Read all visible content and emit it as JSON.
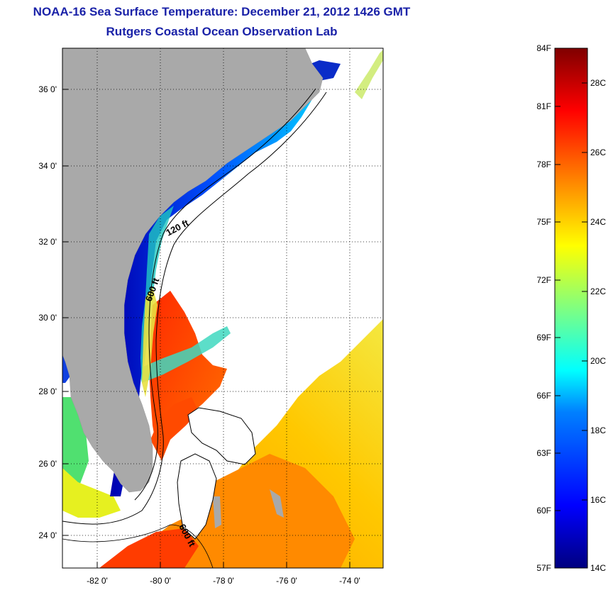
{
  "title": "NOAA-16 Sea Surface Temperature:  December 21, 2012 1426 GMT",
  "subtitle": "Rutgers Coastal Ocean Observation Lab",
  "map": {
    "x_ticks": [
      "-82 0'",
      "-80 0'",
      "-78 0'",
      "-76 0'",
      "-74 0'"
    ],
    "y_ticks": [
      "36 0'",
      "34 0'",
      "32 0'",
      "30 0'",
      "28 0'",
      "26 0'",
      "24 0'"
    ],
    "lon_range": [
      -83,
      -73
    ],
    "lat_range": [
      23,
      37
    ],
    "land_color": "#a9a9a9",
    "contour_labels": [
      "120 ft",
      "600 ft",
      "600 ft"
    ]
  },
  "colorbar": {
    "f_labels": [
      "84F",
      "81F",
      "78F",
      "75F",
      "72F",
      "69F",
      "66F",
      "63F",
      "60F",
      "57F"
    ],
    "c_labels": [
      "28C",
      "26C",
      "24C",
      "22C",
      "20C",
      "18C",
      "16C",
      "14C"
    ],
    "f_range": [
      57,
      84
    ],
    "c_range": [
      14,
      29
    ],
    "colormap": [
      "#00007f",
      "#0000ff",
      "#0080ff",
      "#00ffff",
      "#80ff80",
      "#ffff00",
      "#ff8000",
      "#ff0000",
      "#7f0000"
    ]
  }
}
